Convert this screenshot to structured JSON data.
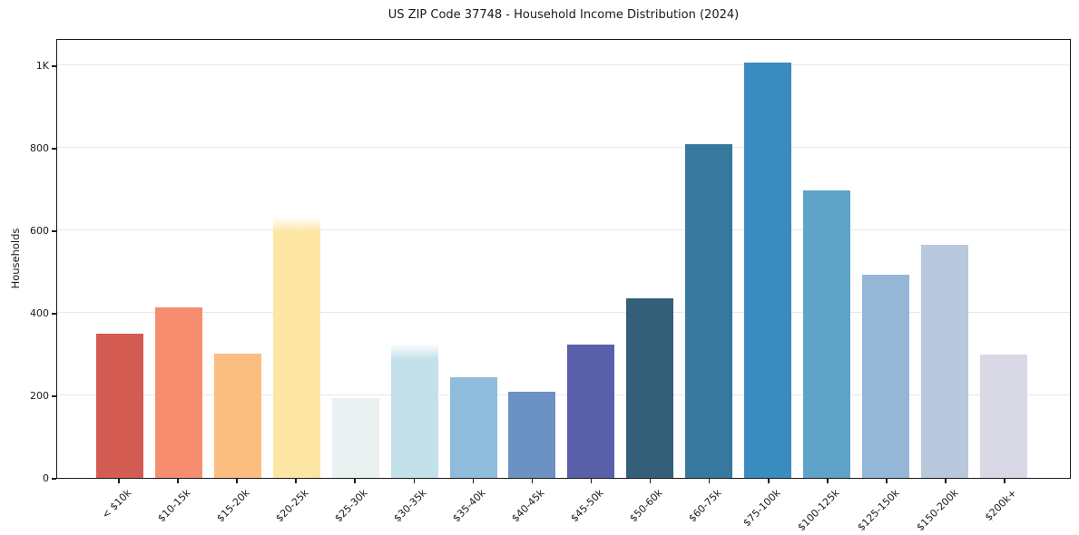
{
  "chart_data": {
    "type": "bar",
    "title": "US ZIP Code 37748 - Household Income Distribution (2024)",
    "xlabel": "",
    "ylabel": "Households",
    "ylim": [
      0,
      1066
    ],
    "grid": true,
    "legend": false,
    "background": "#ffffff",
    "axis_color": "#1a1a1a",
    "gridline_color": "#e8e8e8",
    "yticks": [
      {
        "value": 0,
        "label": "0"
      },
      {
        "value": 200,
        "label": "200"
      },
      {
        "value": 400,
        "label": "400"
      },
      {
        "value": 600,
        "label": "600"
      },
      {
        "value": 800,
        "label": "800"
      },
      {
        "value": 1000,
        "label": "1K"
      }
    ],
    "categories": [
      "< $10k",
      "$10-15k",
      "$15-20k",
      "$20-25k",
      "$25-30k",
      "$30-35k",
      "$35-40k",
      "$40-45k",
      "$45-50k",
      "$50-60k",
      "$60-75k",
      "$75-100k",
      "$100-125k",
      "$125-150k",
      "$150-200k",
      "$200k+"
    ],
    "values": [
      350,
      415,
      303,
      633,
      195,
      324,
      246,
      210,
      325,
      437,
      813,
      1011,
      700,
      495,
      567,
      301
    ],
    "bar_colors": [
      "#d45c52",
      "#f68d6f",
      "#fcbd80",
      "#fde5a4",
      "#e9f2f0",
      "#c3e1eb",
      "#8fbcda",
      "#6b92c3",
      "#5a5fa9",
      "#336078",
      "#36789e",
      "#3a8cc0",
      "#5ea4c8",
      "#94b7d7",
      "#b9c9dd",
      "#d8d9e5"
    ],
    "soft_top_bars": [
      3,
      5
    ]
  }
}
